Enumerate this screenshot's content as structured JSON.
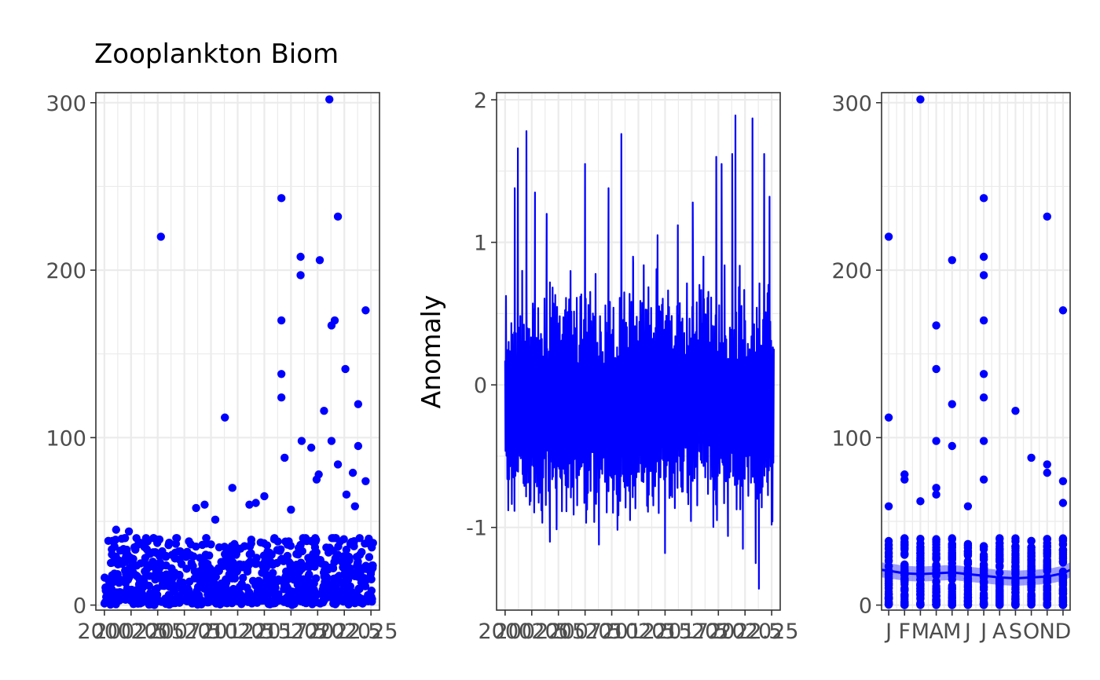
{
  "colors": {
    "series": "#0000ff",
    "band": "#5a5aff",
    "grid": "#ebebeb",
    "frame": "#333333",
    "tick_text": "#4d4d4d"
  },
  "chart_data": [
    {
      "type": "scatter",
      "title": "Zooplankton Biom",
      "xlabel": "",
      "ylabel": "",
      "xlim": [
        1999.2,
        2025.8
      ],
      "ylim": [
        -3,
        306
      ],
      "x_ticks": [
        2000,
        2002.5,
        2005,
        2007.5,
        2010,
        2012.5,
        2015,
        2017.5,
        2020,
        2022.5,
        2025
      ],
      "x_tick_labels": [
        "2000",
        "2002.5",
        "2005",
        "2007.5",
        "2010",
        "2012.5",
        "2015",
        "2017.5",
        "2020",
        "2022.5",
        "2025"
      ],
      "y_ticks": [
        0,
        100,
        200,
        300
      ],
      "y_tick_labels": [
        "0",
        "100",
        "200",
        "300"
      ],
      "grid": true,
      "outliers": [
        {
          "x": 2005.3,
          "y": 220
        },
        {
          "x": 2011.3,
          "y": 112
        },
        {
          "x": 2012.0,
          "y": 70
        },
        {
          "x": 2016.6,
          "y": 243
        },
        {
          "x": 2016.6,
          "y": 170
        },
        {
          "x": 2016.6,
          "y": 138
        },
        {
          "x": 2016.6,
          "y": 124
        },
        {
          "x": 2016.9,
          "y": 88
        },
        {
          "x": 2018.4,
          "y": 208
        },
        {
          "x": 2018.4,
          "y": 197
        },
        {
          "x": 2018.5,
          "y": 98
        },
        {
          "x": 2019.4,
          "y": 94
        },
        {
          "x": 2020.2,
          "y": 206
        },
        {
          "x": 2020.6,
          "y": 116
        },
        {
          "x": 2021.1,
          "y": 302
        },
        {
          "x": 2021.3,
          "y": 167
        },
        {
          "x": 2021.6,
          "y": 170
        },
        {
          "x": 2021.3,
          "y": 98
        },
        {
          "x": 2021.9,
          "y": 84
        },
        {
          "x": 2021.9,
          "y": 232
        },
        {
          "x": 2022.6,
          "y": 141
        },
        {
          "x": 2023.3,
          "y": 79
        },
        {
          "x": 2023.8,
          "y": 120
        },
        {
          "x": 2023.8,
          "y": 95
        },
        {
          "x": 2024.5,
          "y": 176
        },
        {
          "x": 2024.5,
          "y": 74
        },
        {
          "x": 2015.0,
          "y": 65
        },
        {
          "x": 2013.6,
          "y": 60
        },
        {
          "x": 2014.2,
          "y": 61
        },
        {
          "x": 2009.4,
          "y": 60
        },
        {
          "x": 2008.6,
          "y": 58
        },
        {
          "x": 2010.4,
          "y": 51
        },
        {
          "x": 2017.5,
          "y": 57
        },
        {
          "x": 2019.9,
          "y": 75
        },
        {
          "x": 2020.1,
          "y": 78
        },
        {
          "x": 2022.7,
          "y": 66
        },
        {
          "x": 2023.5,
          "y": 59
        },
        {
          "x": 2001.1,
          "y": 45
        },
        {
          "x": 2002.3,
          "y": 44
        }
      ],
      "bulk": {
        "n": 880,
        "x_range": [
          2000,
          2025.2
        ],
        "typical_max": 40,
        "seed": 7
      }
    },
    {
      "type": "line",
      "title": "",
      "xlabel": "",
      "ylabel": "Anomaly",
      "xlim": [
        1999.2,
        2025.8
      ],
      "ylim": [
        -1.58,
        2.05
      ],
      "x_ticks": [
        2000,
        2002.5,
        2005,
        2007.5,
        2010,
        2012.5,
        2015,
        2017.5,
        2020,
        2022.5,
        2025
      ],
      "x_tick_labels": [
        "2000",
        "2002.5",
        "2005",
        "2007.5",
        "2010",
        "2012.5",
        "2015",
        "2017.5",
        "2020",
        "2022.5",
        "2025"
      ],
      "y_ticks": [
        -1,
        0,
        1,
        2
      ],
      "y_tick_labels": [
        "-1",
        "0",
        "1",
        "2"
      ],
      "grid": true,
      "x_range": [
        2000,
        2025.2
      ],
      "anomaly_extremes": [
        {
          "x": 2000.15,
          "y": 0.0
        },
        {
          "x": 2000.3,
          "y": -0.88
        },
        {
          "x": 2000.9,
          "y": 1.38
        },
        {
          "x": 2001.2,
          "y": 1.66
        },
        {
          "x": 2001.6,
          "y": 0.8
        },
        {
          "x": 2002.0,
          "y": 1.78
        },
        {
          "x": 2002.8,
          "y": 1.35
        },
        {
          "x": 2003.9,
          "y": 1.2
        },
        {
          "x": 2004.2,
          "y": -1.1
        },
        {
          "x": 2006.0,
          "y": 0.6
        },
        {
          "x": 2007.5,
          "y": 1.55
        },
        {
          "x": 2008.8,
          "y": -1.12
        },
        {
          "x": 2009.7,
          "y": 1.38
        },
        {
          "x": 2010.9,
          "y": 1.76
        },
        {
          "x": 2012.0,
          "y": 0.9
        },
        {
          "x": 2013.0,
          "y": 0.84
        },
        {
          "x": 2014.3,
          "y": 1.05
        },
        {
          "x": 2015.0,
          "y": -1.18
        },
        {
          "x": 2016.2,
          "y": 1.12
        },
        {
          "x": 2017.6,
          "y": 1.28
        },
        {
          "x": 2018.6,
          "y": 0.9
        },
        {
          "x": 2019.8,
          "y": 1.6
        },
        {
          "x": 2020.3,
          "y": 1.55
        },
        {
          "x": 2020.9,
          "y": -1.06
        },
        {
          "x": 2021.3,
          "y": 1.62
        },
        {
          "x": 2021.6,
          "y": 1.89
        },
        {
          "x": 2022.3,
          "y": -1.15
        },
        {
          "x": 2023.2,
          "y": 1.87
        },
        {
          "x": 2023.5,
          "y": -1.25
        },
        {
          "x": 2023.8,
          "y": -1.43
        },
        {
          "x": 2024.3,
          "y": 1.62
        },
        {
          "x": 2024.8,
          "y": 1.32
        },
        {
          "x": 2025.0,
          "y": -0.98
        }
      ],
      "noise_seed": 11
    },
    {
      "type": "scatter",
      "title": "",
      "xlabel": "",
      "ylabel": "",
      "xlim": [
        0.55,
        12.45
      ],
      "ylim": [
        -3,
        306
      ],
      "x_ticks": [
        1,
        2,
        3,
        4,
        5,
        6,
        7,
        8,
        9,
        10,
        11,
        12
      ],
      "x_tick_labels": [
        "J",
        "F",
        "M",
        "A",
        "M",
        "J",
        "J",
        "A",
        "S",
        "O",
        "N",
        "D"
      ],
      "y_ticks": [
        0,
        100,
        200,
        300
      ],
      "y_tick_labels": [
        "0",
        "100",
        "200",
        "300"
      ],
      "grid": true,
      "outliers": [
        {
          "x": 1,
          "y": 220
        },
        {
          "x": 1,
          "y": 112
        },
        {
          "x": 2,
          "y": 78
        },
        {
          "x": 3,
          "y": 302
        },
        {
          "x": 4,
          "y": 167
        },
        {
          "x": 4,
          "y": 141
        },
        {
          "x": 4,
          "y": 98
        },
        {
          "x": 5,
          "y": 206
        },
        {
          "x": 5,
          "y": 120
        },
        {
          "x": 5,
          "y": 95
        },
        {
          "x": 7,
          "y": 243
        },
        {
          "x": 7,
          "y": 208
        },
        {
          "x": 7,
          "y": 197
        },
        {
          "x": 7,
          "y": 170
        },
        {
          "x": 7,
          "y": 138
        },
        {
          "x": 7,
          "y": 124
        },
        {
          "x": 7,
          "y": 98
        },
        {
          "x": 7,
          "y": 75
        },
        {
          "x": 9,
          "y": 116
        },
        {
          "x": 10,
          "y": 88
        },
        {
          "x": 11,
          "y": 232
        },
        {
          "x": 11,
          "y": 84
        },
        {
          "x": 11,
          "y": 79
        },
        {
          "x": 12,
          "y": 176
        },
        {
          "x": 12,
          "y": 74
        },
        {
          "x": 4,
          "y": 70
        },
        {
          "x": 4,
          "y": 66
        },
        {
          "x": 2,
          "y": 75
        },
        {
          "x": 3,
          "y": 62
        },
        {
          "x": 12,
          "y": 61
        },
        {
          "x": 1,
          "y": 59
        },
        {
          "x": 6,
          "y": 59
        }
      ],
      "smooth": {
        "x": [
          0.55,
          1,
          2,
          3,
          4,
          5,
          6,
          7,
          8,
          9,
          10,
          11,
          12,
          12.45
        ],
        "y": [
          21,
          20.5,
          19,
          18.5,
          19,
          19.5,
          18.5,
          17.5,
          16.5,
          16,
          16.5,
          17,
          19,
          21
        ],
        "band": 4.5
      },
      "per_month_count": 60,
      "typical_max": 40,
      "seed": 23
    }
  ]
}
